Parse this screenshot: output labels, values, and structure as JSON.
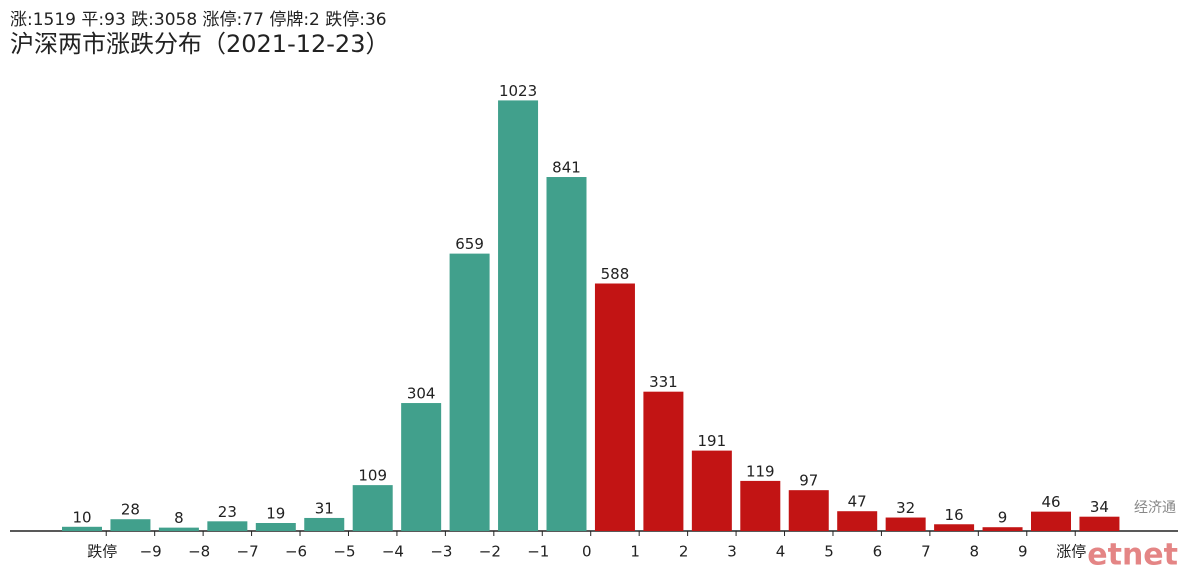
{
  "chart_data": {
    "type": "bar",
    "subtitle": "涨:1519 平:93 跌:3058 涨停:77 停牌:2 跌停:36",
    "title": "沪深两市涨跌分布（2021-12-23）",
    "categories": [
      null,
      null,
      null,
      null,
      null,
      null,
      null,
      null,
      null,
      null,
      null,
      null,
      null,
      null,
      null,
      null,
      null,
      null,
      null,
      null,
      null,
      null
    ],
    "values": [
      10,
      28,
      8,
      23,
      19,
      31,
      109,
      304,
      659,
      1023,
      841,
      588,
      331,
      191,
      119,
      97,
      47,
      32,
      16,
      9,
      46,
      34
    ],
    "colors": [
      "#41a08c",
      "#41a08c",
      "#41a08c",
      "#41a08c",
      "#41a08c",
      "#41a08c",
      "#41a08c",
      "#41a08c",
      "#41a08c",
      "#41a08c",
      "#41a08c",
      "#c21414",
      "#c21414",
      "#c21414",
      "#c21414",
      "#c21414",
      "#c21414",
      "#c21414",
      "#c21414",
      "#c21414",
      "#c21414",
      "#c21414"
    ],
    "boundary_labels": [
      "跌停",
      "−9",
      "−8",
      "−7",
      "−6",
      "−5",
      "−4",
      "−3",
      "−2",
      "−1",
      "0",
      "1",
      "2",
      "3",
      "4",
      "5",
      "6",
      "7",
      "8",
      "9",
      "涨停"
    ],
    "ylim": [
      0,
      1100
    ],
    "watermark": {
      "top": "经济通",
      "bottom": "etnet"
    }
  }
}
